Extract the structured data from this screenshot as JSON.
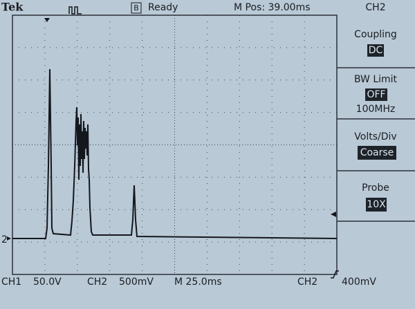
{
  "header": {
    "brand": "Tek",
    "trigger_state_icon": "B",
    "status": "Ready",
    "position": "M Pos: 39.00ms",
    "menu_channel": "CH2"
  },
  "menu": [
    {
      "label": "Coupling",
      "setting": "DC"
    },
    {
      "label": "BW Limit",
      "setting": "OFF",
      "detail": "100MHz"
    },
    {
      "label": "Volts/Div",
      "setting": "Coarse"
    },
    {
      "label": "Probe",
      "setting": "10X"
    }
  ],
  "marker": "2",
  "footer": {
    "ch1": "CH1",
    "ch1_scale": "50.0V",
    "ch2": "CH2",
    "ch2_scale": "500mV",
    "timebase": "M 25.0ms",
    "trigger_source": "CH2",
    "trigger_level": "400mV"
  }
}
